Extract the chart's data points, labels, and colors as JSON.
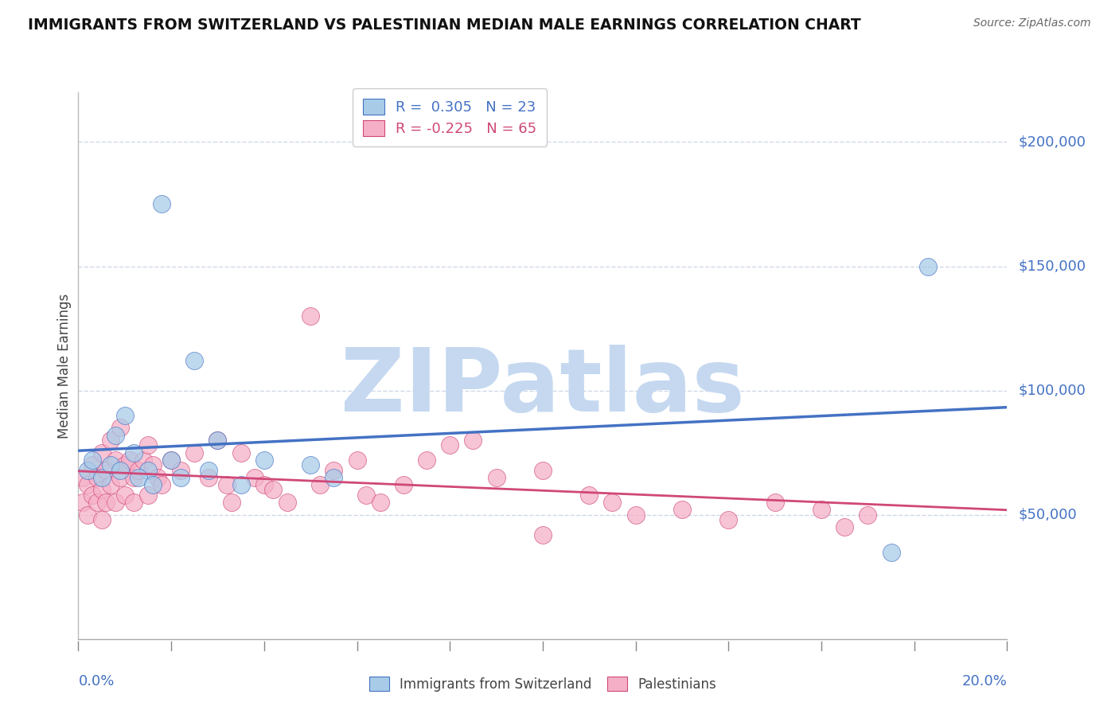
{
  "title": "IMMIGRANTS FROM SWITZERLAND VS PALESTINIAN MEDIAN MALE EARNINGS CORRELATION CHART",
  "source": "Source: ZipAtlas.com",
  "ylabel": "Median Male Earnings",
  "ytick_labels": [
    "$50,000",
    "$100,000",
    "$150,000",
    "$200,000"
  ],
  "ytick_values": [
    50000,
    100000,
    150000,
    200000
  ],
  "xmin": 0.0,
  "xmax": 0.2,
  "ymin": 0,
  "ymax": 220000,
  "r_swiss": 0.305,
  "n_swiss": 23,
  "r_palest": -0.225,
  "n_palest": 65,
  "color_swiss": "#a8cce8",
  "color_palest": "#f5b0c8",
  "line_color_swiss": "#4472c4",
  "line_color_palest": "#d04878",
  "swiss_x": [
    0.018,
    0.025,
    0.03,
    0.04,
    0.008,
    0.01,
    0.012,
    0.015,
    0.02,
    0.022,
    0.028,
    0.035,
    0.05,
    0.055,
    0.002,
    0.003,
    0.005,
    0.007,
    0.009,
    0.013,
    0.016,
    0.175,
    0.183
  ],
  "swiss_y": [
    175000,
    112000,
    80000,
    72000,
    82000,
    90000,
    75000,
    68000,
    72000,
    65000,
    68000,
    62000,
    70000,
    65000,
    68000,
    72000,
    65000,
    70000,
    68000,
    65000,
    62000,
    35000,
    150000
  ],
  "palest_x": [
    0.001,
    0.001,
    0.002,
    0.002,
    0.003,
    0.003,
    0.004,
    0.004,
    0.005,
    0.005,
    0.005,
    0.006,
    0.006,
    0.007,
    0.007,
    0.008,
    0.008,
    0.009,
    0.009,
    0.01,
    0.01,
    0.011,
    0.012,
    0.012,
    0.013,
    0.014,
    0.015,
    0.015,
    0.016,
    0.017,
    0.018,
    0.02,
    0.022,
    0.025,
    0.028,
    0.03,
    0.032,
    0.033,
    0.035,
    0.038,
    0.04,
    0.042,
    0.045,
    0.05,
    0.052,
    0.055,
    0.06,
    0.062,
    0.065,
    0.07,
    0.075,
    0.08,
    0.085,
    0.09,
    0.1,
    0.11,
    0.115,
    0.12,
    0.13,
    0.14,
    0.15,
    0.16,
    0.17,
    0.165,
    0.1
  ],
  "palest_y": [
    65000,
    55000,
    62000,
    50000,
    70000,
    58000,
    65000,
    55000,
    75000,
    60000,
    48000,
    68000,
    55000,
    80000,
    62000,
    72000,
    55000,
    85000,
    65000,
    70000,
    58000,
    72000,
    65000,
    55000,
    68000,
    72000,
    78000,
    58000,
    70000,
    65000,
    62000,
    72000,
    68000,
    75000,
    65000,
    80000,
    62000,
    55000,
    75000,
    65000,
    62000,
    60000,
    55000,
    130000,
    62000,
    68000,
    72000,
    58000,
    55000,
    62000,
    72000,
    78000,
    80000,
    65000,
    68000,
    58000,
    55000,
    50000,
    52000,
    48000,
    55000,
    52000,
    50000,
    45000,
    42000
  ],
  "watermark": "ZIPatlas",
  "watermark_color": "#c5d8f0",
  "background_color": "#ffffff",
  "grid_color": "#d0d8e8"
}
